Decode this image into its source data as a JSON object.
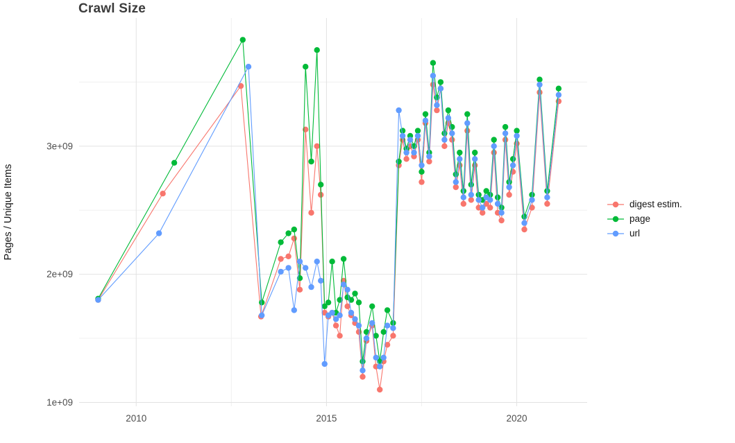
{
  "chart_data": {
    "type": "line",
    "title": "Crawl Size",
    "xlabel": "",
    "ylabel": "Pages / Unique Items",
    "legend_position": "right",
    "grid": true,
    "background_color": "#ffffff",
    "grid_major_color": "#e2e2e2",
    "grid_minor_color": "#f0f0f0",
    "xlim": [
      2008.5,
      2021.85
    ],
    "ylim": [
      970000000.0,
      4000000000.0
    ],
    "x_ticks": [
      2010,
      2015,
      2020
    ],
    "x_tick_labels": [
      "2010",
      "2015",
      "2020"
    ],
    "x_minor_ticks": [
      2012.5,
      2017.5
    ],
    "y_ticks": [
      1000000000.0,
      2000000000.0,
      3000000000.0
    ],
    "y_tick_labels": [
      "1e+09",
      "2e+09",
      "3e+09"
    ],
    "y_minor_ticks": [
      1500000000.0,
      2500000000.0,
      3500000000.0
    ],
    "series": [
      {
        "name": "digest estim.",
        "color": "#F8766D",
        "points": [
          [
            2009.0,
            1800000000.0
          ],
          [
            2010.7,
            2630000000.0
          ],
          [
            2012.75,
            3470000000.0
          ],
          [
            2013.28,
            1670000000.0
          ],
          [
            2013.8,
            2120000000.0
          ],
          [
            2014.0,
            2140000000.0
          ],
          [
            2014.15,
            2280000000.0
          ],
          [
            2014.3,
            1880000000.0
          ],
          [
            2014.45,
            3130000000.0
          ],
          [
            2014.6,
            2480000000.0
          ],
          [
            2014.75,
            3000000000.0
          ],
          [
            2014.85,
            2620000000.0
          ],
          [
            2014.95,
            1700000000.0
          ],
          [
            2015.05,
            1670000000.0
          ],
          [
            2015.15,
            1700000000.0
          ],
          [
            2015.25,
            1600000000.0
          ],
          [
            2015.35,
            1520000000.0
          ],
          [
            2015.45,
            1950000000.0
          ],
          [
            2015.55,
            1750000000.0
          ],
          [
            2015.65,
            1680000000.0
          ],
          [
            2015.75,
            1620000000.0
          ],
          [
            2015.85,
            1550000000.0
          ],
          [
            2015.95,
            1200000000.0
          ],
          [
            2016.05,
            1480000000.0
          ],
          [
            2016.2,
            1600000000.0
          ],
          [
            2016.3,
            1280000000.0
          ],
          [
            2016.4,
            1100000000.0
          ],
          [
            2016.5,
            1320000000.0
          ],
          [
            2016.6,
            1450000000.0
          ],
          [
            2016.75,
            1520000000.0
          ],
          [
            2016.9,
            2850000000.0
          ],
          [
            2017.0,
            3050000000.0
          ],
          [
            2017.1,
            2900000000.0
          ],
          [
            2017.2,
            3000000000.0
          ],
          [
            2017.3,
            2920000000.0
          ],
          [
            2017.4,
            3050000000.0
          ],
          [
            2017.5,
            2720000000.0
          ],
          [
            2017.6,
            3180000000.0
          ],
          [
            2017.7,
            2880000000.0
          ],
          [
            2017.8,
            3480000000.0
          ],
          [
            2017.9,
            3280000000.0
          ],
          [
            2018.0,
            3450000000.0
          ],
          [
            2018.1,
            3000000000.0
          ],
          [
            2018.2,
            3180000000.0
          ],
          [
            2018.3,
            3050000000.0
          ],
          [
            2018.4,
            2680000000.0
          ],
          [
            2018.5,
            2850000000.0
          ],
          [
            2018.6,
            2550000000.0
          ],
          [
            2018.7,
            3120000000.0
          ],
          [
            2018.8,
            2580000000.0
          ],
          [
            2018.9,
            2850000000.0
          ],
          [
            2019.0,
            2520000000.0
          ],
          [
            2019.1,
            2480000000.0
          ],
          [
            2019.2,
            2550000000.0
          ],
          [
            2019.3,
            2520000000.0
          ],
          [
            2019.4,
            2950000000.0
          ],
          [
            2019.5,
            2480000000.0
          ],
          [
            2019.6,
            2420000000.0
          ],
          [
            2019.7,
            3050000000.0
          ],
          [
            2019.8,
            2620000000.0
          ],
          [
            2019.9,
            2800000000.0
          ],
          [
            2020.0,
            3020000000.0
          ],
          [
            2020.2,
            2350000000.0
          ],
          [
            2020.4,
            2520000000.0
          ],
          [
            2020.6,
            3420000000.0
          ],
          [
            2020.8,
            2550000000.0
          ],
          [
            2021.1,
            3350000000.0
          ]
        ]
      },
      {
        "name": "page",
        "color": "#00BA38",
        "points": [
          [
            2009.0,
            1810000000.0
          ],
          [
            2011.0,
            2870000000.0
          ],
          [
            2012.8,
            3830000000.0
          ],
          [
            2013.3,
            1780000000.0
          ],
          [
            2013.8,
            2250000000.0
          ],
          [
            2014.0,
            2320000000.0
          ],
          [
            2014.15,
            2350000000.0
          ],
          [
            2014.3,
            1970000000.0
          ],
          [
            2014.45,
            3620000000.0
          ],
          [
            2014.6,
            2880000000.0
          ],
          [
            2014.75,
            3750000000.0
          ],
          [
            2014.85,
            2700000000.0
          ],
          [
            2014.95,
            1750000000.0
          ],
          [
            2015.05,
            1780000000.0
          ],
          [
            2015.15,
            2100000000.0
          ],
          [
            2015.25,
            1700000000.0
          ],
          [
            2015.35,
            1800000000.0
          ],
          [
            2015.45,
            2120000000.0
          ],
          [
            2015.55,
            1820000000.0
          ],
          [
            2015.65,
            1800000000.0
          ],
          [
            2015.75,
            1850000000.0
          ],
          [
            2015.85,
            1780000000.0
          ],
          [
            2015.95,
            1320000000.0
          ],
          [
            2016.05,
            1550000000.0
          ],
          [
            2016.2,
            1750000000.0
          ],
          [
            2016.3,
            1520000000.0
          ],
          [
            2016.4,
            1320000000.0
          ],
          [
            2016.5,
            1550000000.0
          ],
          [
            2016.6,
            1720000000.0
          ],
          [
            2016.75,
            1620000000.0
          ],
          [
            2016.9,
            2880000000.0
          ],
          [
            2017.0,
            3120000000.0
          ],
          [
            2017.1,
            2980000000.0
          ],
          [
            2017.2,
            3080000000.0
          ],
          [
            2017.3,
            3000000000.0
          ],
          [
            2017.4,
            3120000000.0
          ],
          [
            2017.5,
            2800000000.0
          ],
          [
            2017.6,
            3250000000.0
          ],
          [
            2017.7,
            2950000000.0
          ],
          [
            2017.8,
            3650000000.0
          ],
          [
            2017.9,
            3380000000.0
          ],
          [
            2018.0,
            3500000000.0
          ],
          [
            2018.1,
            3100000000.0
          ],
          [
            2018.2,
            3280000000.0
          ],
          [
            2018.3,
            3150000000.0
          ],
          [
            2018.4,
            2780000000.0
          ],
          [
            2018.5,
            2950000000.0
          ],
          [
            2018.6,
            2650000000.0
          ],
          [
            2018.7,
            3250000000.0
          ],
          [
            2018.8,
            2700000000.0
          ],
          [
            2018.9,
            2950000000.0
          ],
          [
            2019.0,
            2620000000.0
          ],
          [
            2019.1,
            2580000000.0
          ],
          [
            2019.2,
            2650000000.0
          ],
          [
            2019.3,
            2620000000.0
          ],
          [
            2019.4,
            3050000000.0
          ],
          [
            2019.5,
            2600000000.0
          ],
          [
            2019.6,
            2520000000.0
          ],
          [
            2019.7,
            3150000000.0
          ],
          [
            2019.8,
            2720000000.0
          ],
          [
            2019.9,
            2900000000.0
          ],
          [
            2020.0,
            3120000000.0
          ],
          [
            2020.2,
            2450000000.0
          ],
          [
            2020.4,
            2620000000.0
          ],
          [
            2020.6,
            3520000000.0
          ],
          [
            2020.8,
            2650000000.0
          ],
          [
            2021.1,
            3450000000.0
          ]
        ]
      },
      {
        "name": "url",
        "color": "#619CFF",
        "points": [
          [
            2009.0,
            1800000000.0
          ],
          [
            2010.6,
            2320000000.0
          ],
          [
            2012.95,
            3620000000.0
          ],
          [
            2013.3,
            1680000000.0
          ],
          [
            2013.8,
            2020000000.0
          ],
          [
            2014.0,
            2050000000.0
          ],
          [
            2014.15,
            1720000000.0
          ],
          [
            2014.3,
            2100000000.0
          ],
          [
            2014.45,
            2050000000.0
          ],
          [
            2014.6,
            1900000000.0
          ],
          [
            2014.75,
            2100000000.0
          ],
          [
            2014.85,
            1950000000.0
          ],
          [
            2014.95,
            1300000000.0
          ],
          [
            2015.05,
            1680000000.0
          ],
          [
            2015.15,
            1700000000.0
          ],
          [
            2015.25,
            1650000000.0
          ],
          [
            2015.35,
            1680000000.0
          ],
          [
            2015.45,
            1920000000.0
          ],
          [
            2015.55,
            1880000000.0
          ],
          [
            2015.65,
            1700000000.0
          ],
          [
            2015.75,
            1650000000.0
          ],
          [
            2015.85,
            1600000000.0
          ],
          [
            2015.95,
            1250000000.0
          ],
          [
            2016.05,
            1500000000.0
          ],
          [
            2016.2,
            1620000000.0
          ],
          [
            2016.3,
            1350000000.0
          ],
          [
            2016.4,
            1280000000.0
          ],
          [
            2016.5,
            1350000000.0
          ],
          [
            2016.6,
            1600000000.0
          ],
          [
            2016.75,
            1580000000.0
          ],
          [
            2016.9,
            3280000000.0
          ],
          [
            2017.0,
            3080000000.0
          ],
          [
            2017.1,
            2950000000.0
          ],
          [
            2017.2,
            3050000000.0
          ],
          [
            2017.3,
            2950000000.0
          ],
          [
            2017.4,
            3080000000.0
          ],
          [
            2017.5,
            2850000000.0
          ],
          [
            2017.6,
            3200000000.0
          ],
          [
            2017.7,
            2920000000.0
          ],
          [
            2017.8,
            3550000000.0
          ],
          [
            2017.9,
            3320000000.0
          ],
          [
            2018.0,
            3450000000.0
          ],
          [
            2018.1,
            3050000000.0
          ],
          [
            2018.2,
            3220000000.0
          ],
          [
            2018.3,
            3100000000.0
          ],
          [
            2018.4,
            2720000000.0
          ],
          [
            2018.5,
            2900000000.0
          ],
          [
            2018.6,
            2600000000.0
          ],
          [
            2018.7,
            3180000000.0
          ],
          [
            2018.8,
            2620000000.0
          ],
          [
            2018.9,
            2900000000.0
          ],
          [
            2019.0,
            2580000000.0
          ],
          [
            2019.1,
            2520000000.0
          ],
          [
            2019.2,
            2600000000.0
          ],
          [
            2019.3,
            2580000000.0
          ],
          [
            2019.4,
            3000000000.0
          ],
          [
            2019.5,
            2550000000.0
          ],
          [
            2019.6,
            2480000000.0
          ],
          [
            2019.7,
            3100000000.0
          ],
          [
            2019.8,
            2680000000.0
          ],
          [
            2019.9,
            2850000000.0
          ],
          [
            2020.0,
            3080000000.0
          ],
          [
            2020.2,
            2400000000.0
          ],
          [
            2020.4,
            2580000000.0
          ],
          [
            2020.6,
            3480000000.0
          ],
          [
            2020.8,
            2600000000.0
          ],
          [
            2021.1,
            3400000000.0
          ]
        ]
      }
    ]
  }
}
